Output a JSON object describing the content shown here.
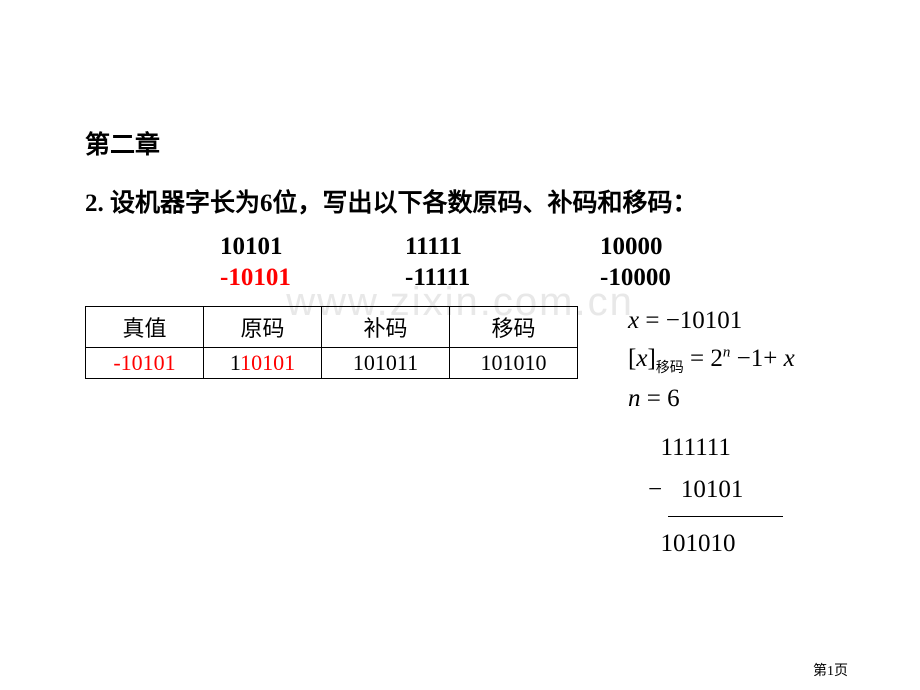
{
  "watermark": "www.zixin.com.cn",
  "chapter_title": "第二章",
  "question": "2.  设机器字长为6位，写出以下各数原码、补码和移码：",
  "numbers": {
    "row1": {
      "c1": "10101",
      "c2": "11111",
      "c3": "10000"
    },
    "row2": {
      "c1": "-10101",
      "c2": "-11111",
      "c3": "-10000"
    }
  },
  "table": {
    "headers": [
      "真值",
      "原码",
      "补码",
      "移码"
    ],
    "row": {
      "truth": "-10101",
      "orig_prefix": "1",
      "orig_rest": "10101",
      "comp": "101011",
      "shift": "101010"
    }
  },
  "math": {
    "line1_x": "x",
    "line1_eq": " = −10101",
    "line2_lb": "[",
    "line2_x": "x",
    "line2_rb": "]",
    "line2_sub": "移码",
    "line2_eq": " = 2",
    "line2_supn": "n",
    "line2_tail": " −1+ ",
    "line2_x2": "x",
    "line3_n": "n",
    "line3_eq": " = 6"
  },
  "calc": {
    "r1": "  111111",
    "r2": "−   10101",
    "r3": "  101010"
  },
  "page": "第1页",
  "colors": {
    "red": "#ff0000",
    "text": "#000000",
    "watermark": "#e8e8e8",
    "bg": "#ffffff"
  }
}
